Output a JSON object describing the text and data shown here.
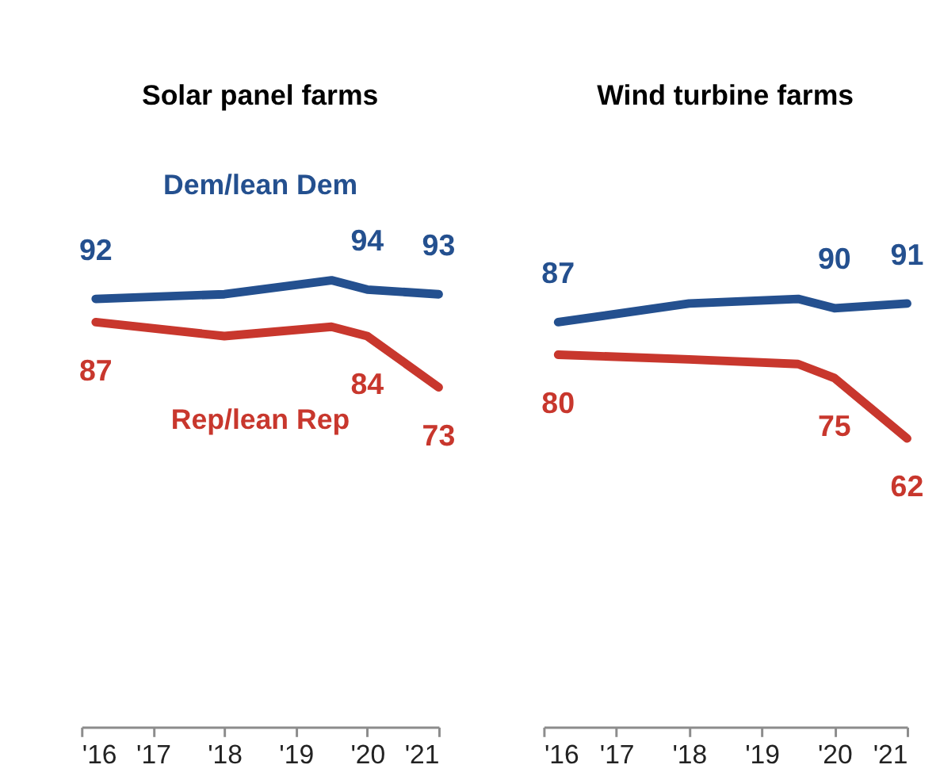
{
  "chart_data": [
    {
      "type": "line",
      "title": "Solar panel farms",
      "x": [
        2016.2,
        2018,
        2019.5,
        2020,
        2021
      ],
      "xlim": [
        2016,
        2021
      ],
      "xticks": [
        {
          "value": 2016,
          "label": "'16"
        },
        {
          "value": 2017,
          "label": "'17"
        },
        {
          "value": 2018,
          "label": "'18"
        },
        {
          "value": 2019,
          "label": "'19"
        },
        {
          "value": 2020,
          "label": "'20"
        },
        {
          "value": 2021,
          "label": "'21"
        }
      ],
      "grid": false,
      "tick_labels": "x",
      "marker": "none",
      "line_style": "solid",
      "series": [
        {
          "name": "Dem/lean Dem",
          "color": "#24508f",
          "values": [
            92,
            93,
            96,
            94,
            93
          ],
          "value_labels": [
            "92",
            null,
            null,
            "94",
            "93"
          ]
        },
        {
          "name": "Rep/lean Rep",
          "color": "#c8372d",
          "values": [
            87,
            84,
            86,
            84,
            73
          ],
          "value_labels": [
            "87",
            null,
            null,
            "84",
            "73"
          ]
        }
      ]
    },
    {
      "type": "line",
      "title": "Wind turbine farms",
      "x": [
        2016.2,
        2018,
        2019.5,
        2020,
        2021
      ],
      "xlim": [
        2016,
        2021
      ],
      "xticks": [
        {
          "value": 2016,
          "label": "'16"
        },
        {
          "value": 2017,
          "label": "'17"
        },
        {
          "value": 2018,
          "label": "'18"
        },
        {
          "value": 2019,
          "label": "'19"
        },
        {
          "value": 2020,
          "label": "'20"
        },
        {
          "value": 2021,
          "label": "'21"
        }
      ],
      "grid": false,
      "tick_labels": "x",
      "marker": "none",
      "line_style": "solid",
      "series": [
        {
          "color": "#24508f",
          "values": [
            87,
            91,
            92,
            90,
            91
          ],
          "value_labels": [
            "87",
            null,
            null,
            "90",
            "91"
          ]
        },
        {
          "color": "#c8372d",
          "values": [
            80,
            79,
            78,
            75,
            62
          ],
          "value_labels": [
            "80",
            null,
            null,
            "75",
            "62"
          ]
        }
      ]
    }
  ]
}
